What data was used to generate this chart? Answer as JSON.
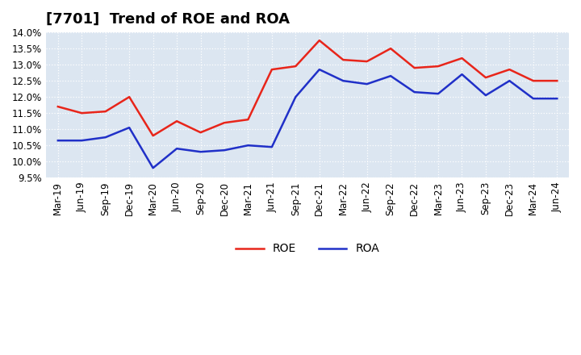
{
  "title": "[7701]  Trend of ROE and ROA",
  "labels": [
    "Mar-19",
    "Jun-19",
    "Sep-19",
    "Dec-19",
    "Mar-20",
    "Jun-20",
    "Sep-20",
    "Dec-20",
    "Mar-21",
    "Jun-21",
    "Sep-21",
    "Dec-21",
    "Mar-22",
    "Jun-22",
    "Sep-22",
    "Dec-22",
    "Mar-23",
    "Jun-23",
    "Sep-23",
    "Dec-23",
    "Mar-24",
    "Jun-24"
  ],
  "ROE": [
    11.7,
    11.5,
    11.55,
    12.0,
    10.8,
    11.25,
    10.9,
    11.2,
    11.3,
    12.85,
    12.95,
    13.75,
    13.15,
    13.1,
    13.5,
    12.9,
    12.95,
    13.2,
    12.6,
    12.85,
    12.5,
    12.5
  ],
  "ROA": [
    10.65,
    10.65,
    10.75,
    11.05,
    9.8,
    10.4,
    10.3,
    10.35,
    10.5,
    10.45,
    12.0,
    12.85,
    12.5,
    12.4,
    12.65,
    12.15,
    12.1,
    12.7,
    12.05,
    12.5,
    11.95,
    11.95
  ],
  "roe_color": "#e8251a",
  "roa_color": "#2030c8",
  "bg_color": "#ffffff",
  "plot_bg_color": "#dce6f1",
  "grid_color": "#ffffff",
  "ylim": [
    9.5,
    14.0
  ],
  "yticks": [
    9.5,
    10.0,
    10.5,
    11.0,
    11.5,
    12.0,
    12.5,
    13.0,
    13.5,
    14.0
  ],
  "title_fontsize": 13,
  "legend_fontsize": 10,
  "tick_fontsize": 8.5
}
